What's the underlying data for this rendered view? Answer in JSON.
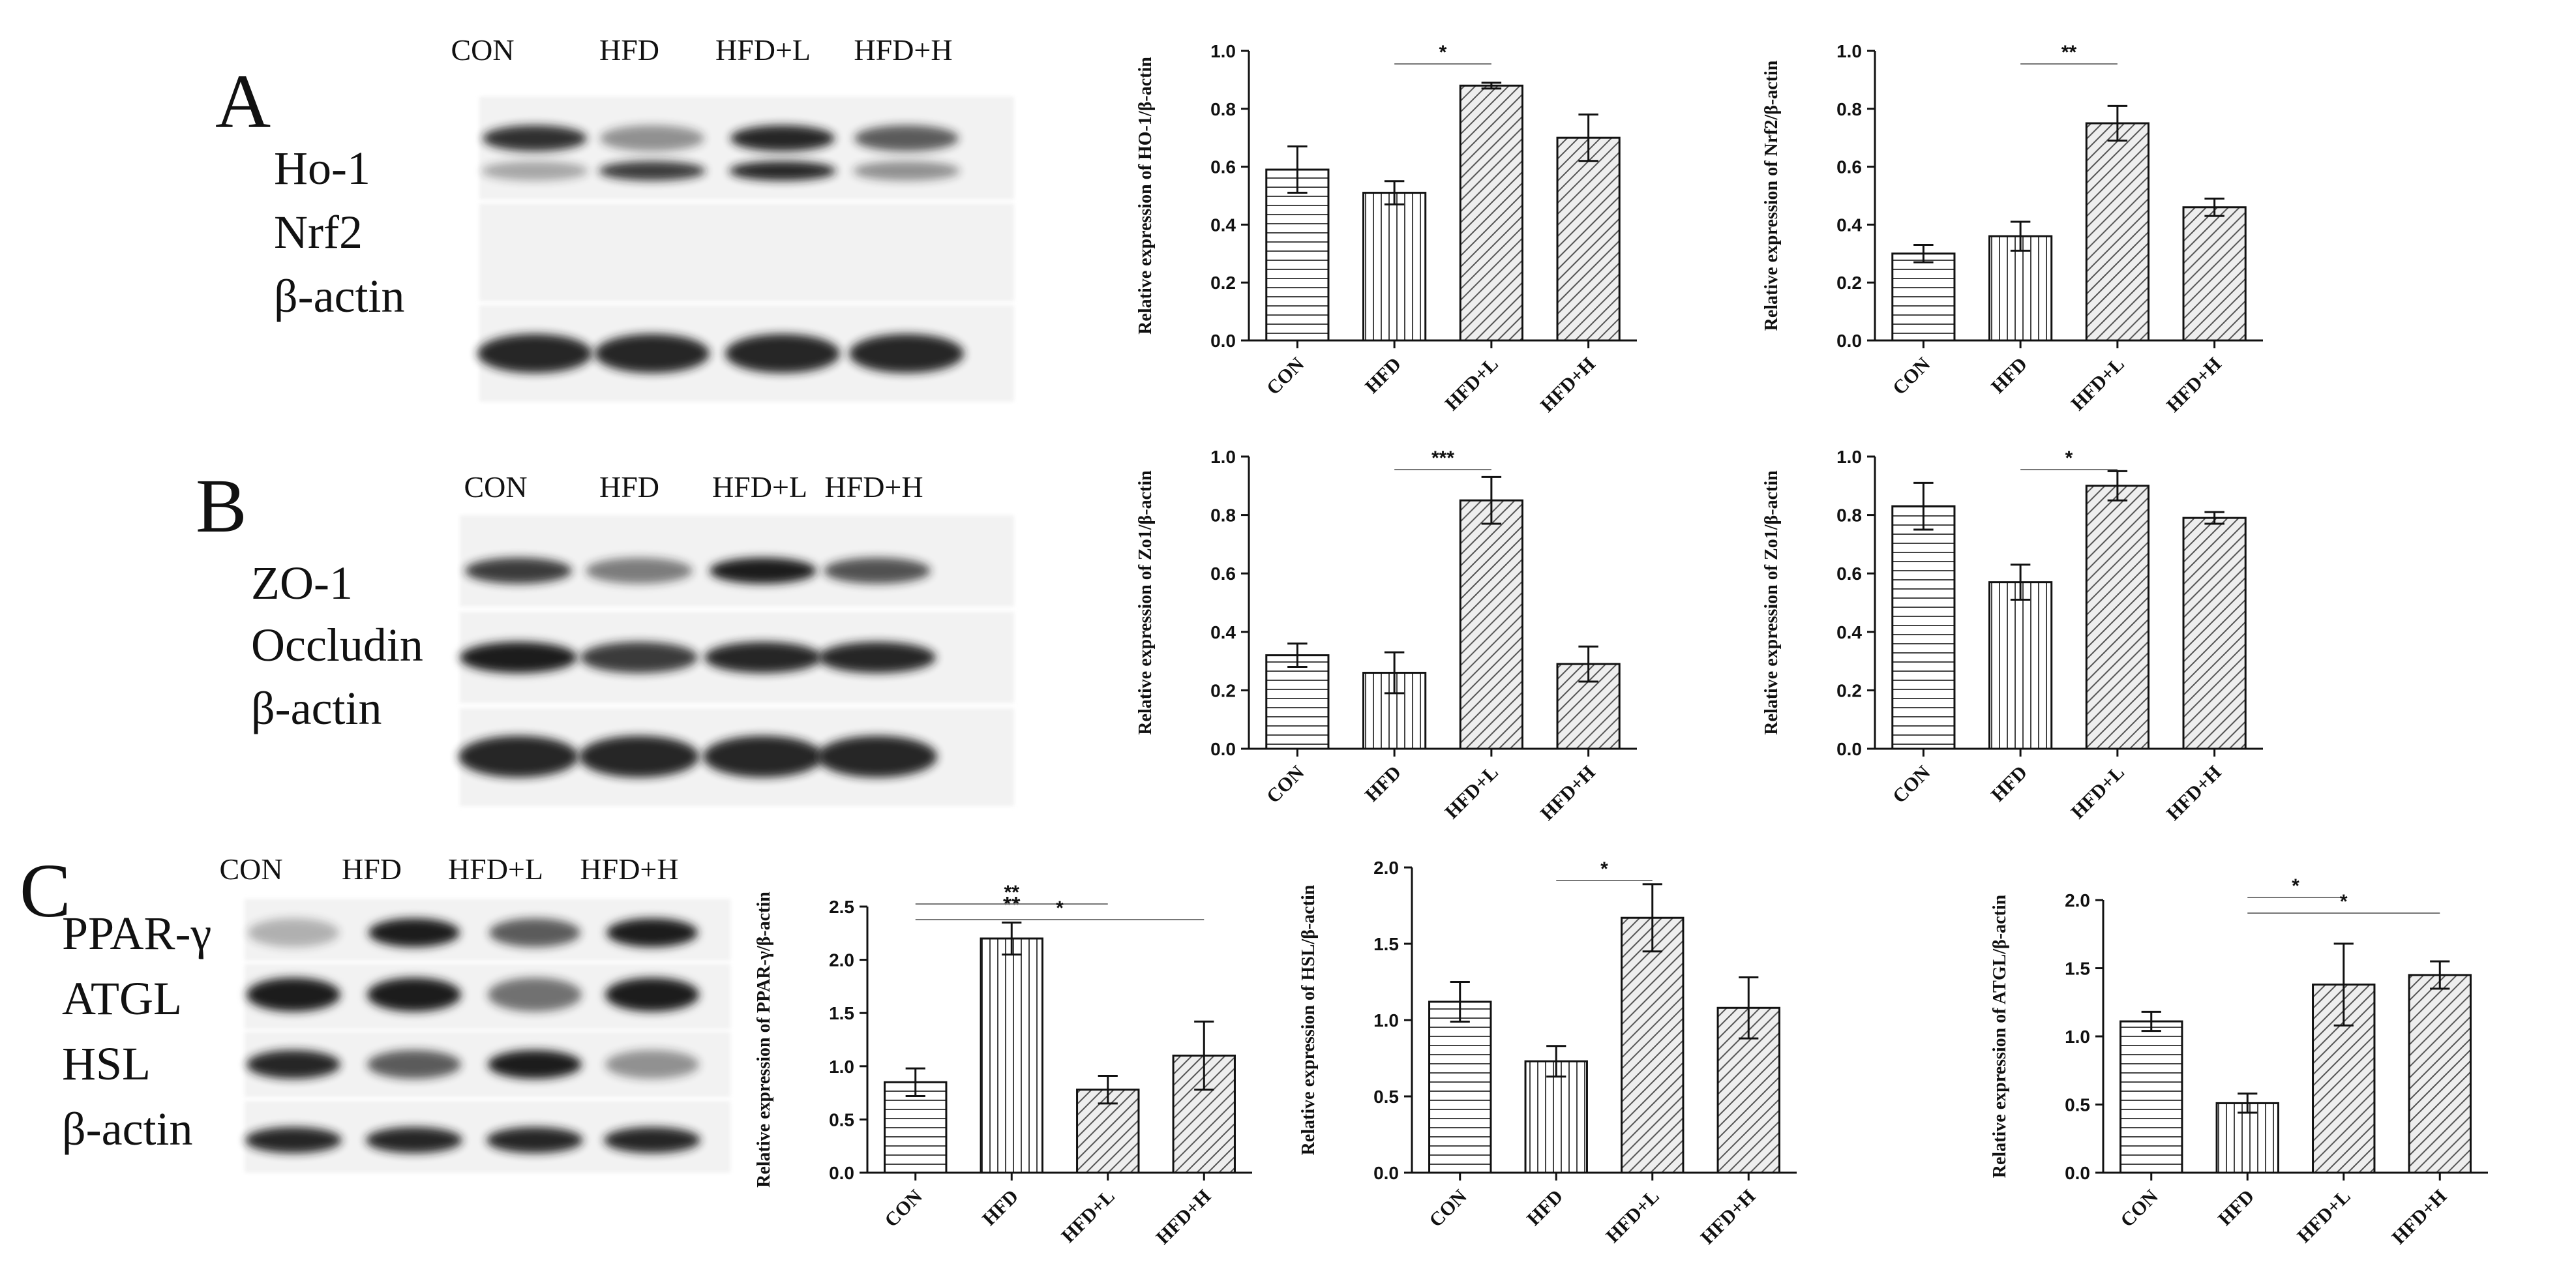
{
  "colors": {
    "ink": "#111111",
    "bar_fill": "#ffffff",
    "blot_bg": "#f2f2f2",
    "band": "#1a1a1a"
  },
  "panels": {
    "A": {
      "letter": "A",
      "lanes": [
        "CON",
        "HFD",
        "HFD+L",
        "HFD+H"
      ],
      "rows": [
        "Ho-1",
        "Nrf2",
        "β-actin"
      ]
    },
    "B": {
      "letter": "B",
      "lanes": [
        "CON",
        "HFD",
        "HFD+L",
        "HFD+H"
      ],
      "rows": [
        "ZO-1",
        "Occludin",
        "β-actin"
      ]
    },
    "C": {
      "letter": "C",
      "lanes": [
        "CON",
        "HFD",
        "HFD+L",
        "HFD+H"
      ],
      "rows": [
        "PPAR-γ",
        "ATGL",
        "HSL",
        "β-actin"
      ]
    }
  },
  "chart_data": [
    {
      "type": "bar",
      "panel": "A",
      "ylabel": "Relative expression of HO-1/β-actin",
      "categories": [
        "CON",
        "HFD",
        "HFD+L",
        "HFD+H"
      ],
      "values": [
        0.59,
        0.51,
        0.88,
        0.7
      ],
      "errors": [
        0.08,
        0.04,
        0.01,
        0.08
      ],
      "patterns": [
        "hlines",
        "vlines",
        "diag",
        "diag"
      ],
      "ylim": [
        0,
        1.0
      ],
      "yticks": [
        "0.0",
        "0.2",
        "0.4",
        "0.6",
        "0.8",
        "1.0"
      ],
      "significance": [
        {
          "from": 1,
          "to": 2,
          "label": "*"
        }
      ]
    },
    {
      "type": "bar",
      "panel": "A",
      "ylabel": "Relative expression of Nrf2/β-actin",
      "categories": [
        "CON",
        "HFD",
        "HFD+L",
        "HFD+H"
      ],
      "values": [
        0.3,
        0.36,
        0.75,
        0.46
      ],
      "errors": [
        0.03,
        0.05,
        0.06,
        0.03
      ],
      "patterns": [
        "hlines",
        "vlines",
        "diag",
        "diag"
      ],
      "ylim": [
        0,
        1.0
      ],
      "yticks": [
        "0.0",
        "0.2",
        "0.4",
        "0.6",
        "0.8",
        "1.0"
      ],
      "significance": [
        {
          "from": 1,
          "to": 2,
          "label": "**"
        }
      ]
    },
    {
      "type": "bar",
      "panel": "B",
      "ylabel": "Relative expression of Zo1/β-actin",
      "categories": [
        "CON",
        "HFD",
        "HFD+L",
        "HFD+H"
      ],
      "values": [
        0.32,
        0.26,
        0.85,
        0.29
      ],
      "errors": [
        0.04,
        0.07,
        0.08,
        0.06
      ],
      "patterns": [
        "hlines",
        "vlines",
        "diag",
        "diag"
      ],
      "ylim": [
        0,
        1.0
      ],
      "yticks": [
        "0.0",
        "0.2",
        "0.4",
        "0.6",
        "0.8",
        "1.0"
      ],
      "significance": [
        {
          "from": 1,
          "to": 2,
          "label": "***"
        }
      ]
    },
    {
      "type": "bar",
      "panel": "B",
      "ylabel": "Relative expression of Zo1/β-actin",
      "categories": [
        "CON",
        "HFD",
        "HFD+L",
        "HFD+H"
      ],
      "values": [
        0.83,
        0.57,
        0.9,
        0.79
      ],
      "errors": [
        0.08,
        0.06,
        0.05,
        0.02
      ],
      "patterns": [
        "hlines",
        "vlines",
        "diag",
        "diag"
      ],
      "ylim": [
        0,
        1.0
      ],
      "yticks": [
        "0.0",
        "0.2",
        "0.4",
        "0.6",
        "0.8",
        "1.0"
      ],
      "significance": [
        {
          "from": 1,
          "to": 2,
          "label": "*"
        }
      ]
    },
    {
      "type": "bar",
      "panel": "C",
      "ylabel": "Relative expression of PPAR-γ/β-actin",
      "categories": [
        "CON",
        "HFD",
        "HFD+L",
        "HFD+H"
      ],
      "values": [
        0.85,
        2.2,
        0.78,
        1.1
      ],
      "errors": [
        0.13,
        0.15,
        0.13,
        0.32
      ],
      "patterns": [
        "hlines",
        "vlines",
        "diag",
        "diag"
      ],
      "ylim": [
        0,
        2.5
      ],
      "yticks": [
        "0.0",
        "0.5",
        "1.0",
        "1.5",
        "2.0",
        "2.5"
      ],
      "bar_labels": [
        {
          "index": 1,
          "label": "**"
        }
      ],
      "significance": [
        {
          "from": 0,
          "to": 2,
          "label": "**"
        },
        {
          "from": 0,
          "to": 3,
          "label": "*"
        }
      ]
    },
    {
      "type": "bar",
      "panel": "C",
      "ylabel": "Relative expression of HSL/β-actin",
      "categories": [
        "CON",
        "HFD",
        "HFD+L",
        "HFD+H"
      ],
      "values": [
        1.12,
        0.73,
        1.67,
        1.08
      ],
      "errors": [
        0.13,
        0.1,
        0.22,
        0.2
      ],
      "patterns": [
        "hlines",
        "vlines",
        "diag",
        "diag"
      ],
      "ylim": [
        0,
        2.0
      ],
      "yticks": [
        "0.0",
        "0.5",
        "1.0",
        "1.5",
        "2.0"
      ],
      "significance": [
        {
          "from": 1,
          "to": 2,
          "label": "*"
        }
      ]
    },
    {
      "type": "bar",
      "panel": "C",
      "ylabel": "Relative expression of ATGL/β-actin",
      "categories": [
        "CON",
        "HFD",
        "HFD+L",
        "HFD+H"
      ],
      "values": [
        1.11,
        0.51,
        1.38,
        1.45
      ],
      "errors": [
        0.07,
        0.07,
        0.3,
        0.1
      ],
      "patterns": [
        "hlines",
        "vlines",
        "diag",
        "diag"
      ],
      "ylim": [
        0,
        2.0
      ],
      "yticks": [
        "0.0",
        "0.5",
        "1.0",
        "1.5",
        "2.0"
      ],
      "significance": [
        {
          "from": 1,
          "to": 2,
          "label": "*"
        },
        {
          "from": 1,
          "to": 3,
          "label": "*"
        }
      ]
    }
  ]
}
